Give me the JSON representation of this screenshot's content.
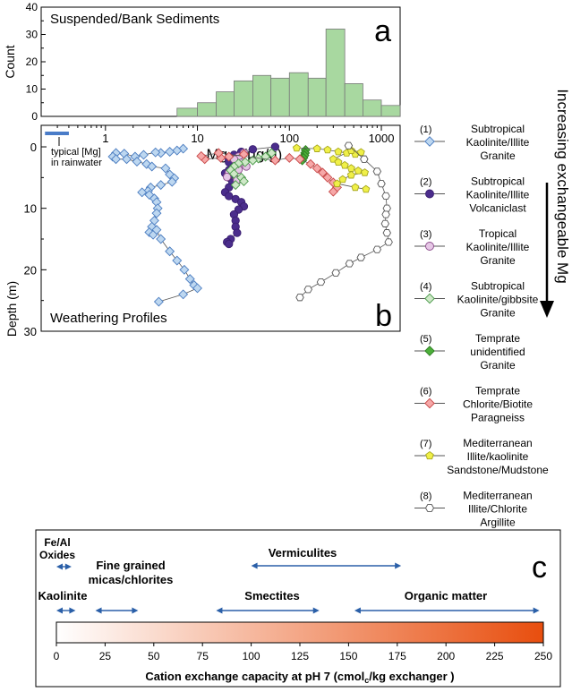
{
  "chart_data": [
    {
      "panel": "a",
      "type": "bar",
      "title": "Suspended/Bank Sediments",
      "ylabel": "Count",
      "xscale": "log",
      "ylim": [
        0,
        40
      ],
      "yticks": [
        "0",
        "10",
        "20",
        "30",
        "40"
      ],
      "bins": [
        {
          "x0": 6,
          "x1": 10,
          "count": 3
        },
        {
          "x0": 10,
          "x1": 16,
          "count": 5
        },
        {
          "x0": 16,
          "x1": 25,
          "count": 9
        },
        {
          "x0": 25,
          "x1": 40,
          "count": 13
        },
        {
          "x0": 40,
          "x1": 63,
          "count": 15
        },
        {
          "x0": 63,
          "x1": 100,
          "count": 14
        },
        {
          "x0": 100,
          "x1": 160,
          "count": 16
        },
        {
          "x0": 160,
          "x1": 250,
          "count": 14
        },
        {
          "x0": 250,
          "x1": 400,
          "count": 32
        },
        {
          "x0": 400,
          "x1": 630,
          "count": 12
        },
        {
          "x0": 630,
          "x1": 1000,
          "count": 6
        },
        {
          "x0": 1000,
          "x1": 1600,
          "count": 4
        }
      ],
      "color": "#a8d8a0"
    },
    {
      "panel": "b",
      "type": "scatter",
      "title": "Weathering Profiles",
      "xlabel_main": "Mg",
      "xlabel_sub": "ex",
      "xlabel_unit": "(μg/g)",
      "ylabel": "Depth (m)",
      "xscale": "log",
      "xlim": [
        0.2,
        1600
      ],
      "ylim": [
        30,
        -3.5
      ],
      "xticks": [
        {
          "v": 1,
          "l": "1"
        },
        {
          "v": 10,
          "l": "10"
        },
        {
          "v": 100,
          "l": "100"
        },
        {
          "v": 1000,
          "l": "1000"
        }
      ],
      "yticks": [
        {
          "v": 0,
          "l": "0"
        },
        {
          "v": 10,
          "l": "10"
        },
        {
          "v": 20,
          "l": "20"
        },
        {
          "v": 30,
          "l": "30"
        }
      ],
      "rain_label": [
        "typical [Mg]",
        "in rainwater"
      ],
      "rain_range": [
        0.22,
        0.4
      ],
      "arrow_label": "Increasing exchangeable Mg",
      "series": [
        {
          "num": "(1)",
          "name": [
            "Subtropical",
            "Kaolinite/Illite",
            "Granite"
          ],
          "marker": "diamond",
          "fill": "#bdd7f0",
          "stroke": "#4a7cc0",
          "points": [
            [
              7,
              0.3
            ],
            [
              6,
              0.6
            ],
            [
              5,
              0.8
            ],
            [
              4,
              1.0
            ],
            [
              3.5,
              0.9
            ],
            [
              2.6,
              1.3
            ],
            [
              2.1,
              1.6
            ],
            [
              1.6,
              1.1
            ],
            [
              1.3,
              1.0
            ],
            [
              1.2,
              1.6
            ],
            [
              1.3,
              2.0
            ],
            [
              1.7,
              2.0
            ],
            [
              2.2,
              2.4
            ],
            [
              2.8,
              2.8
            ],
            [
              3.2,
              3.2
            ],
            [
              4.5,
              3.5
            ],
            [
              5,
              4.5
            ],
            [
              5.6,
              5.1
            ],
            [
              5.3,
              5.7
            ],
            [
              4.0,
              6.2
            ],
            [
              3.1,
              6.6
            ],
            [
              2.9,
              7.2
            ],
            [
              2.5,
              7.4
            ],
            [
              3.0,
              7.8
            ],
            [
              3.4,
              8.4
            ],
            [
              3.6,
              9.0
            ],
            [
              3.7,
              10.0
            ],
            [
              3.6,
              10.8
            ],
            [
              3.4,
              12.0
            ],
            [
              3.2,
              13.0
            ],
            [
              3.0,
              13.9
            ],
            [
              3.3,
              14.3
            ],
            [
              3.6,
              13.5
            ],
            [
              4.0,
              15.0
            ],
            [
              5.0,
              17.0
            ],
            [
              6.0,
              18.5
            ],
            [
              7.2,
              20.0
            ],
            [
              8.3,
              21.5
            ],
            [
              9.2,
              22.5
            ],
            [
              10.0,
              23.0
            ],
            [
              7.0,
              24.0
            ],
            [
              3.8,
              25.2
            ]
          ]
        },
        {
          "num": "(2)",
          "name": [
            "Subtropical",
            "Kaolinite/Illite",
            "Volcaniclast"
          ],
          "marker": "circle",
          "fill": "#4b2d8c",
          "stroke": "#3a1f70",
          "points": [
            [
              70,
              0.0
            ],
            [
              40,
              0.4
            ],
            [
              30,
              0.8
            ],
            [
              25,
              1.3
            ],
            [
              22,
              2.0
            ],
            [
              22,
              2.5
            ],
            [
              25,
              3.2
            ],
            [
              22,
              3.8
            ],
            [
              20,
              4.3
            ],
            [
              22,
              5.0
            ],
            [
              24,
              5.8
            ],
            [
              22,
              6.6
            ],
            [
              20,
              7.4
            ],
            [
              22,
              8.0
            ],
            [
              26,
              8.5
            ],
            [
              30,
              9.0
            ],
            [
              32,
              9.7
            ],
            [
              28,
              10.2
            ],
            [
              25,
              11.0
            ],
            [
              26,
              12.0
            ],
            [
              26,
              13.0
            ],
            [
              27,
              14.0
            ],
            [
              23,
              15.0
            ],
            [
              21,
              15.5
            ],
            [
              22,
              15.8
            ]
          ]
        },
        {
          "num": "(3)",
          "name": [
            "Tropical",
            "Kaolinite/Illite",
            "Granite"
          ],
          "marker": "circle",
          "fill": "#e6c7e6",
          "stroke": "#8a4a8a",
          "points": [
            [
              32,
              1.0
            ],
            [
              28,
              1.6
            ],
            [
              25,
              2.0
            ],
            [
              30,
              2.6
            ],
            [
              34,
              3.2
            ],
            [
              28,
              3.7
            ],
            [
              22,
              4.2
            ],
            [
              21,
              4.9
            ],
            [
              27,
              5.4
            ]
          ]
        },
        {
          "num": "(4)",
          "name": [
            "Subtropical",
            "Kaolinite/gibbsite",
            "Granite"
          ],
          "marker": "diamond",
          "fill": "#cfe8c8",
          "stroke": "#4a9a4a",
          "points": [
            [
              64,
              1.0
            ],
            [
              55,
              1.6
            ],
            [
              46,
              1.9
            ],
            [
              40,
              2.2
            ],
            [
              33,
              2.5
            ],
            [
              28,
              2.7
            ],
            [
              25,
              3.2
            ],
            [
              23,
              3.8
            ],
            [
              25,
              4.4
            ],
            [
              30,
              5.0
            ],
            [
              32,
              5.6
            ],
            [
              26,
              6.2
            ]
          ]
        },
        {
          "num": "(5)",
          "name": [
            "Temprate",
            "unidentified",
            "Granite"
          ],
          "marker": "diamond",
          "fill": "#4caf3a",
          "stroke": "#2e7d22",
          "points": [
            [
              150,
              0.5
            ],
            [
              148,
              1.0
            ],
            [
              146,
              1.4
            ],
            [
              142,
              1.8
            ],
            [
              138,
              2.2
            ]
          ]
        },
        {
          "num": "(6)",
          "name": [
            "Temprate",
            "Chlorite/Biotite",
            "Paragneiss"
          ],
          "marker": "diamond",
          "fill": "#f6a8a8",
          "stroke": "#c84848",
          "points": [
            [
              32,
              1.2
            ],
            [
              22,
              1.6
            ],
            [
              18,
              1.8
            ],
            [
              12,
              2.0
            ],
            [
              11,
              1.5
            ],
            [
              17,
              1.0
            ],
            [
              70,
              2.2
            ],
            [
              100,
              1.8
            ],
            [
              130,
              2.0
            ],
            [
              170,
              2.8
            ],
            [
              200,
              3.5
            ],
            [
              230,
              4.2
            ],
            [
              260,
              5.0
            ],
            [
              300,
              5.8
            ],
            [
              330,
              6.6
            ],
            [
              300,
              7.3
            ]
          ]
        },
        {
          "num": "(7)",
          "name": [
            "Mediterranean",
            "Illite/kaolinite",
            "Sandstone/Mudstone"
          ],
          "marker": "pentagon",
          "fill": "#f0f048",
          "stroke": "#a8a820",
          "points": [
            [
              120,
              0.2
            ],
            [
              200,
              0.3
            ],
            [
              260,
              0.5
            ],
            [
              340,
              0.8
            ],
            [
              420,
              1.0
            ],
            [
              520,
              1.2
            ],
            [
              600,
              0.9
            ],
            [
              470,
              0.6
            ],
            [
              300,
              2.0
            ],
            [
              340,
              2.5
            ],
            [
              400,
              3.0
            ],
            [
              470,
              3.5
            ],
            [
              560,
              3.9
            ],
            [
              660,
              4.2
            ],
            [
              470,
              4.6
            ],
            [
              380,
              5.3
            ],
            [
              330,
              6.0
            ],
            [
              520,
              6.6
            ],
            [
              680,
              6.9
            ]
          ]
        },
        {
          "num": "(8)",
          "name": [
            "Mediterranean",
            "Illite/Chlorite",
            "Argillite"
          ],
          "marker": "hexagon",
          "fill": "#ffffff",
          "stroke": "#555555",
          "points": [
            [
              440,
              -0.2
            ],
            [
              650,
              2.0
            ],
            [
              900,
              4.0
            ],
            [
              1000,
              6.0
            ],
            [
              1120,
              8.0
            ],
            [
              1150,
              10.0
            ],
            [
              1120,
              11.0
            ],
            [
              1100,
              12.5
            ],
            [
              1150,
              14.0
            ],
            [
              1200,
              15.5
            ],
            [
              900,
              16.7
            ],
            [
              600,
              18.0
            ],
            [
              450,
              19.0
            ],
            [
              320,
              20.5
            ],
            [
              220,
              22.0
            ],
            [
              160,
              23.2
            ],
            [
              130,
              24.5
            ]
          ]
        }
      ]
    },
    {
      "panel": "c",
      "type": "colorbar",
      "xlabel": "Cation exchange capacity at pH 7 (cmol",
      "xlabel_sub": "c",
      "xlabel_end": "/kg exchanger )",
      "xlim": [
        0,
        250
      ],
      "xticks": [
        "0",
        "25",
        "50",
        "75",
        "100",
        "125",
        "150",
        "175",
        "200",
        "225",
        "250"
      ],
      "gradient": [
        "#ffffff",
        "#e84e0e"
      ],
      "ranges": [
        {
          "label": "Fe/Al",
          "label2": "Oxides",
          "from": 0,
          "to": 5
        },
        {
          "label": "Fine grained",
          "label2": "micas/chlorites",
          "from": 20,
          "to": 42
        },
        {
          "label": "Kaolinite",
          "label2": "",
          "from": 0,
          "to": 8
        },
        {
          "label": "Vermiculites",
          "label2": "",
          "from": 100,
          "to": 177
        },
        {
          "label": "Smectites",
          "label2": "",
          "from": 82,
          "to": 135
        },
        {
          "label": "Organic matter",
          "label2": "",
          "from": 153,
          "to": 248
        }
      ]
    }
  ],
  "panel_letters": {
    "a": "a",
    "b": "b",
    "c": "c"
  }
}
